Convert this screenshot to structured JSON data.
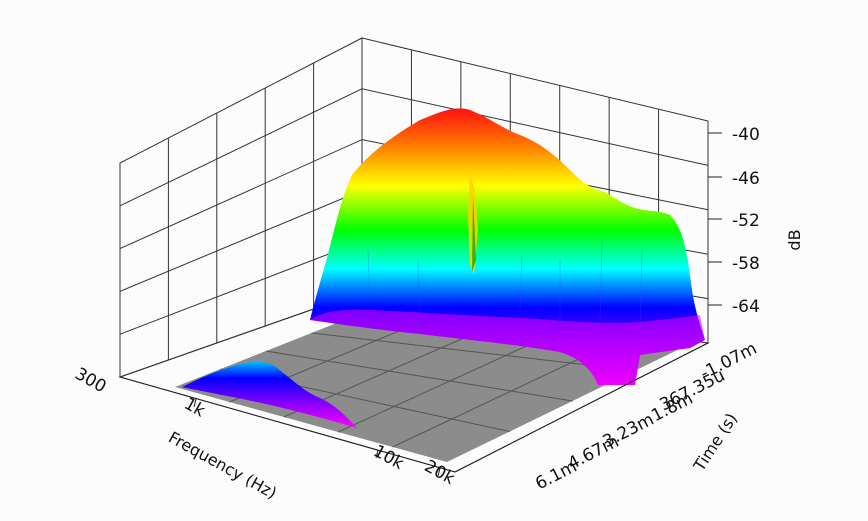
{
  "chart_data": {
    "type": "surface-3d",
    "title": "",
    "zlabel": "dB",
    "xlabel": "Frequency (Hz)",
    "ylabel": "Time (s)",
    "z_ticks": [
      "-40",
      "-46",
      "-52",
      "-58",
      "-64"
    ],
    "x_ticks": [
      "300",
      "1k",
      "10k",
      "20k"
    ],
    "y_ticks": [
      "-1.07m",
      "367.35u",
      "1.8m",
      "3.23m",
      "4.67m",
      "6.1m"
    ],
    "zlim": [
      -70,
      -38
    ],
    "colormap": [
      "#ff00ff",
      "#0000ff",
      "#00ffff",
      "#00ff00",
      "#ffff00",
      "#ff8000",
      "#ff0000"
    ],
    "floor_color": "#8c8c8c",
    "main_ridge": {
      "time_range": [
        "-1.07m",
        "367.35u"
      ],
      "frequency_hz": [
        300,
        400,
        600,
        1000,
        1500,
        2500,
        4000,
        6000,
        10000,
        15000,
        20000
      ],
      "db": [
        -68,
        -52,
        -44,
        -40,
        -39.5,
        -41,
        -44,
        -48,
        -51,
        -53,
        -65
      ]
    },
    "late_tail": {
      "time_range": [
        "1.8m",
        "6.1m"
      ],
      "frequency_hz": [
        300,
        500,
        800,
        1200,
        2000
      ],
      "db": [
        -70,
        -65,
        -62,
        -65,
        -70
      ]
    }
  }
}
